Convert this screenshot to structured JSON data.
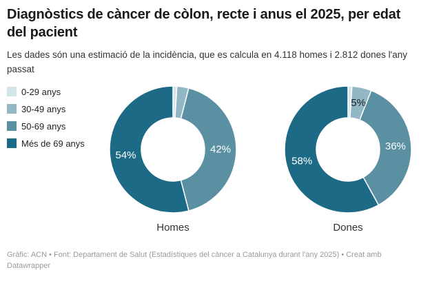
{
  "header": {
    "title": "Diagnòstics de càncer de còlon, recte i anus el 2025, per edat del pacient",
    "subtitle": "Les dades són una estimació de la incidència, que es calcula en 4.118 homes i 2.812 dones l'any passat"
  },
  "legend": {
    "items": [
      {
        "label": "0-29 anys",
        "color": "#d4e5e9"
      },
      {
        "label": "30-49 anys",
        "color": "#93b8c5"
      },
      {
        "label": "50-69 anys",
        "color": "#5b90a3"
      },
      {
        "label": "Més de 69 anys",
        "color": "#1c6a85"
      }
    ]
  },
  "chart_data": {
    "type": "pie",
    "subtype": "donut",
    "unit": "%",
    "legend_position": "left",
    "categories": [
      "0-29 anys",
      "30-49 anys",
      "50-69 anys",
      "Més de 69 anys"
    ],
    "colors": {
      "0-29 anys": "#d4e5e9",
      "30-49 anys": "#93b8c5",
      "50-69 anys": "#5b90a3",
      "Més de 69 anys": "#1c6a85"
    },
    "charts": [
      {
        "name": "Homes",
        "estimated_total": "4.118",
        "values": [
          1,
          3,
          42,
          54
        ],
        "labels": [
          null,
          null,
          "42%",
          "54%"
        ]
      },
      {
        "name": "Dones",
        "estimated_total": "2.812",
        "values": [
          1,
          5,
          36,
          58
        ],
        "labels": [
          null,
          "5%",
          "36%",
          "58%"
        ]
      }
    ]
  },
  "footer": {
    "text": "Gràfic: ACN • Font: Departament de Salut (Estadístiques del càncer a Catalunya durant l'any 2025) • Creat amb Datawrapper"
  }
}
